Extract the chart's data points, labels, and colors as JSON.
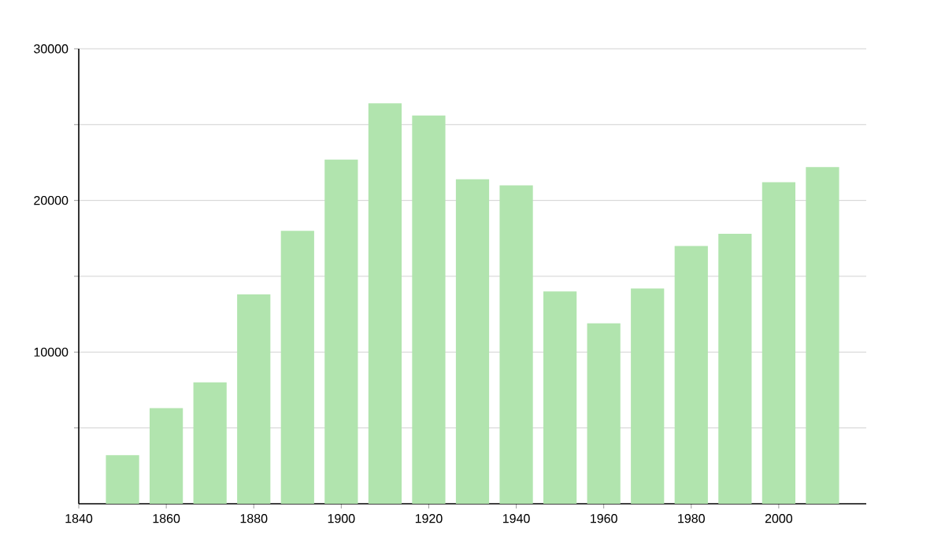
{
  "chart_data": {
    "type": "bar",
    "x": [
      1850,
      1860,
      1870,
      1880,
      1890,
      1900,
      1910,
      1920,
      1930,
      1940,
      1950,
      1960,
      1970,
      1980,
      1990,
      2000,
      2010
    ],
    "values": [
      3200,
      6300,
      8000,
      13800,
      18000,
      22700,
      26400,
      25600,
      21400,
      21000,
      14000,
      11900,
      14200,
      17000,
      17800,
      21200,
      22200
    ],
    "color": "#b1e4ae",
    "xlim": [
      1840,
      2020
    ],
    "xticks": [
      1840,
      1860,
      1880,
      1900,
      1920,
      1940,
      1960,
      1980,
      2000
    ],
    "ylim": [
      0,
      30000
    ],
    "yticks": [
      {
        "value": 5000,
        "label": null
      },
      10000,
      {
        "value": 15000,
        "label": null
      },
      20000,
      {
        "value": 25000,
        "label": null
      },
      30000
    ],
    "grid": "y"
  }
}
